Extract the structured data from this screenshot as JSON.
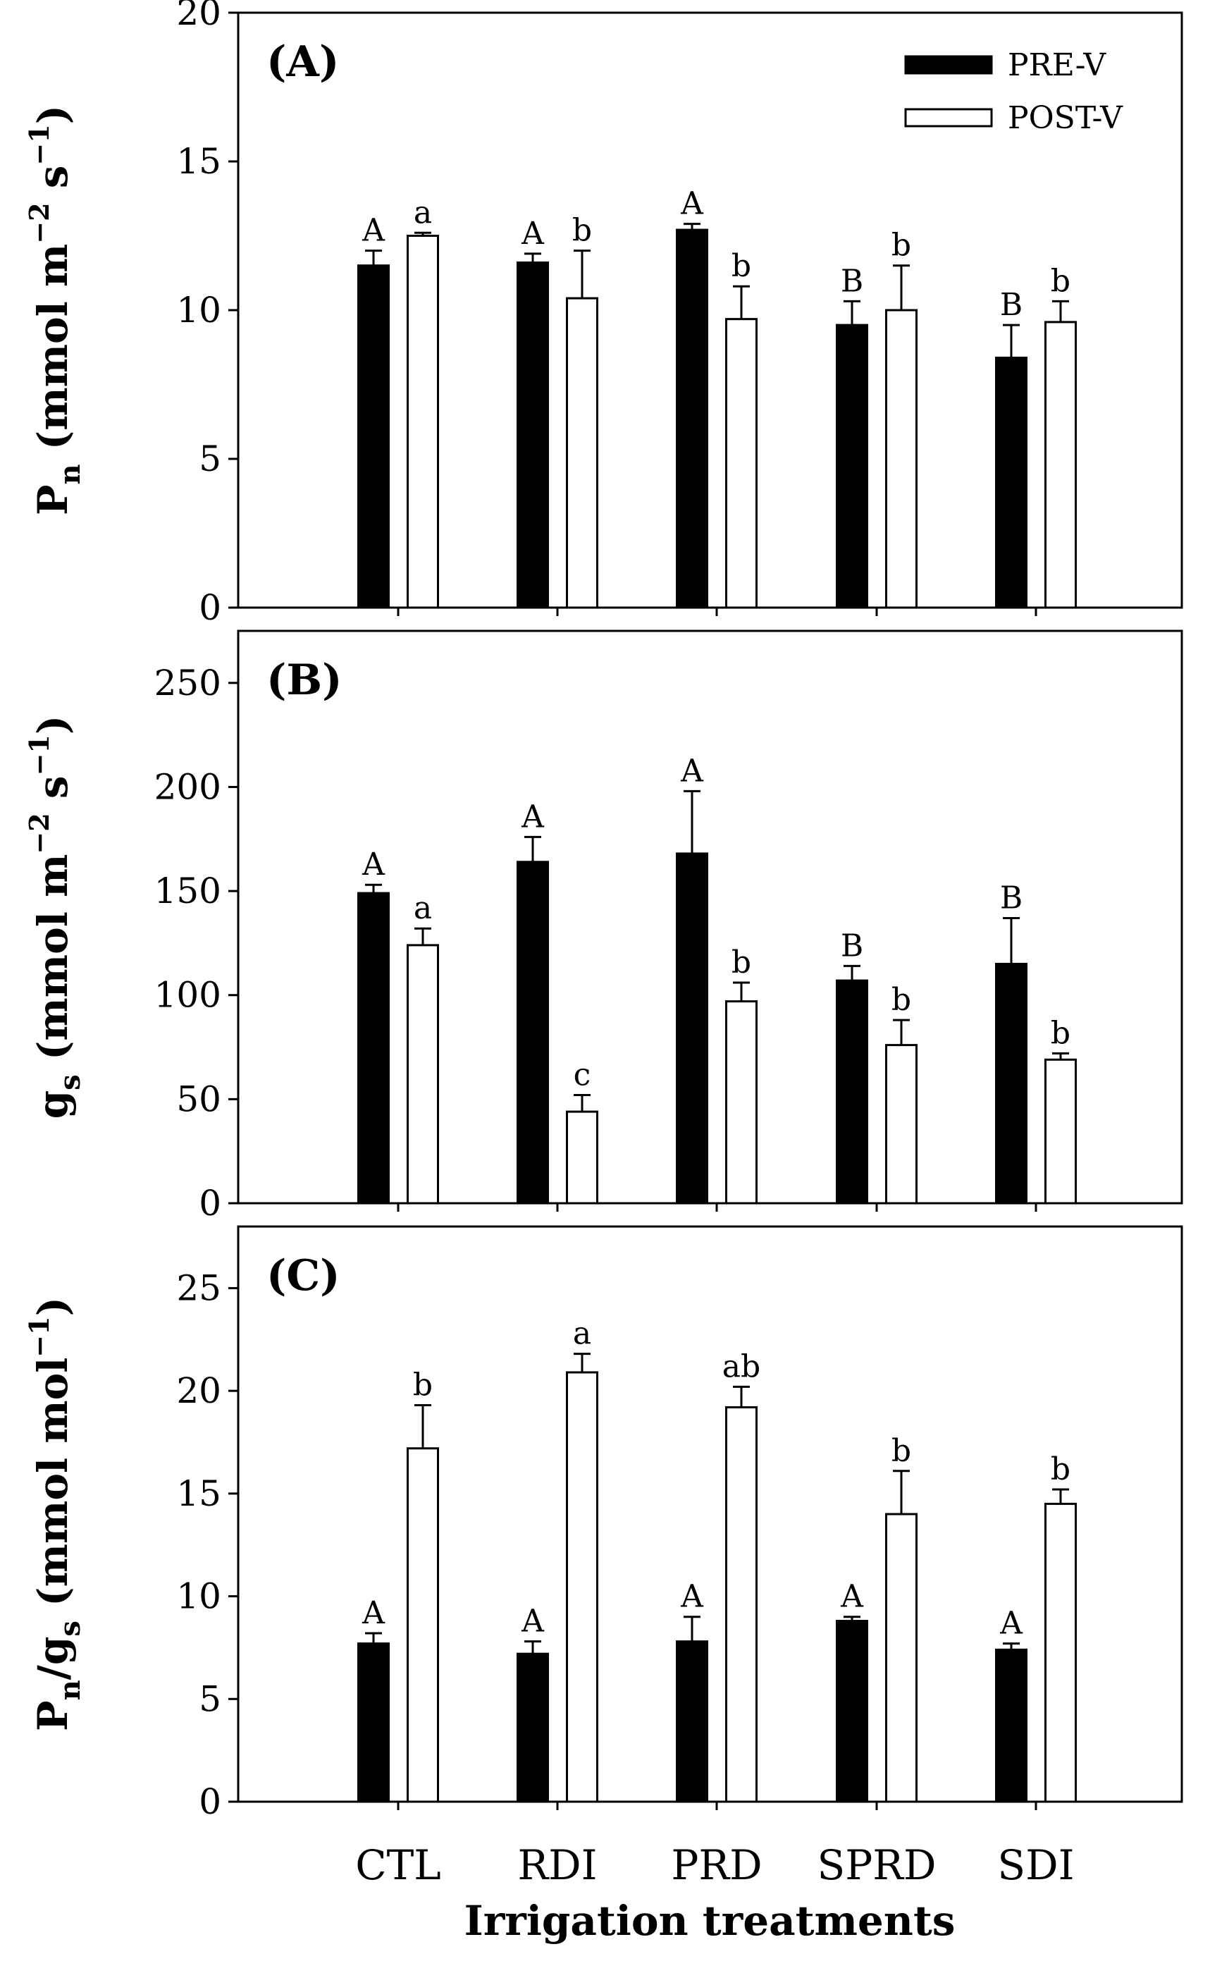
{
  "chart_data": [
    {
      "type": "bar",
      "panel_label": "(A)",
      "ylabel": {
        "main": "P",
        "sub": "n",
        "rest": " (mmol m",
        "sup1": "−2",
        "mid": " s",
        "sup2": "−1",
        "end": ")"
      },
      "ylim": [
        0,
        20
      ],
      "yticks": [
        0,
        5,
        10,
        15,
        20
      ],
      "categories": [
        "CTL",
        "RDI",
        "PRD",
        "SPRD",
        "SDI"
      ],
      "series": [
        {
          "name": "PRE-V",
          "values": [
            11.5,
            11.6,
            12.7,
            9.5,
            8.4
          ],
          "errors": [
            0.5,
            0.3,
            0.2,
            0.8,
            1.1
          ],
          "letters": [
            "A",
            "A",
            "A",
            "B",
            "B"
          ]
        },
        {
          "name": "POST-V",
          "values": [
            12.5,
            10.4,
            9.7,
            10.0,
            9.6
          ],
          "errors": [
            0.1,
            1.6,
            1.1,
            1.5,
            0.7
          ],
          "letters": [
            "a",
            "b",
            "b",
            "b",
            "b"
          ]
        }
      ]
    },
    {
      "type": "bar",
      "panel_label": "(B)",
      "ylabel": {
        "main": "g",
        "sub": "s",
        "rest": " (mmol m",
        "sup1": "−2",
        "mid": " s",
        "sup2": "−1",
        "end": ")"
      },
      "ylim": [
        0,
        275
      ],
      "yticks": [
        0,
        50,
        100,
        150,
        200,
        250
      ],
      "categories": [
        "CTL",
        "RDI",
        "PRD",
        "SPRD",
        "SDI"
      ],
      "series": [
        {
          "name": "PRE-V",
          "values": [
            149,
            164,
            168,
            107,
            115
          ],
          "errors": [
            4,
            12,
            30,
            7,
            22
          ],
          "letters": [
            "A",
            "A",
            "A",
            "B",
            "B"
          ]
        },
        {
          "name": "POST-V",
          "values": [
            124,
            44,
            97,
            76,
            69
          ],
          "errors": [
            8,
            8,
            9,
            12,
            3
          ],
          "letters": [
            "a",
            "c",
            "b",
            "b",
            "b"
          ]
        }
      ]
    },
    {
      "type": "bar",
      "panel_label": "(C)",
      "ylabel": {
        "main": "P",
        "sub": "n",
        "rest": "/g",
        "sub2": "s",
        "tail": " (mmol mol",
        "sup1": "−1",
        "end": ")"
      },
      "ylim": [
        0,
        28
      ],
      "yticks": [
        0,
        5,
        10,
        15,
        20,
        25
      ],
      "categories": [
        "CTL",
        "RDI",
        "PRD",
        "SPRD",
        "SDI"
      ],
      "series": [
        {
          "name": "PRE-V",
          "values": [
            7.7,
            7.2,
            7.8,
            8.8,
            7.4
          ],
          "errors": [
            0.5,
            0.6,
            1.2,
            0.2,
            0.3
          ],
          "letters": [
            "A",
            "A",
            "A",
            "A",
            "A"
          ]
        },
        {
          "name": "POST-V",
          "values": [
            17.2,
            20.9,
            19.2,
            14.0,
            14.5
          ],
          "errors": [
            2.1,
            0.9,
            1.0,
            2.1,
            0.7
          ],
          "letters": [
            "b",
            "a",
            "ab",
            "b",
            "b"
          ]
        }
      ]
    }
  ],
  "legend": [
    {
      "label": "PRE-V",
      "color": "#000000"
    },
    {
      "label": "POST-V",
      "color": "#ffffff"
    }
  ],
  "xlabel": "Irrigation treatments"
}
